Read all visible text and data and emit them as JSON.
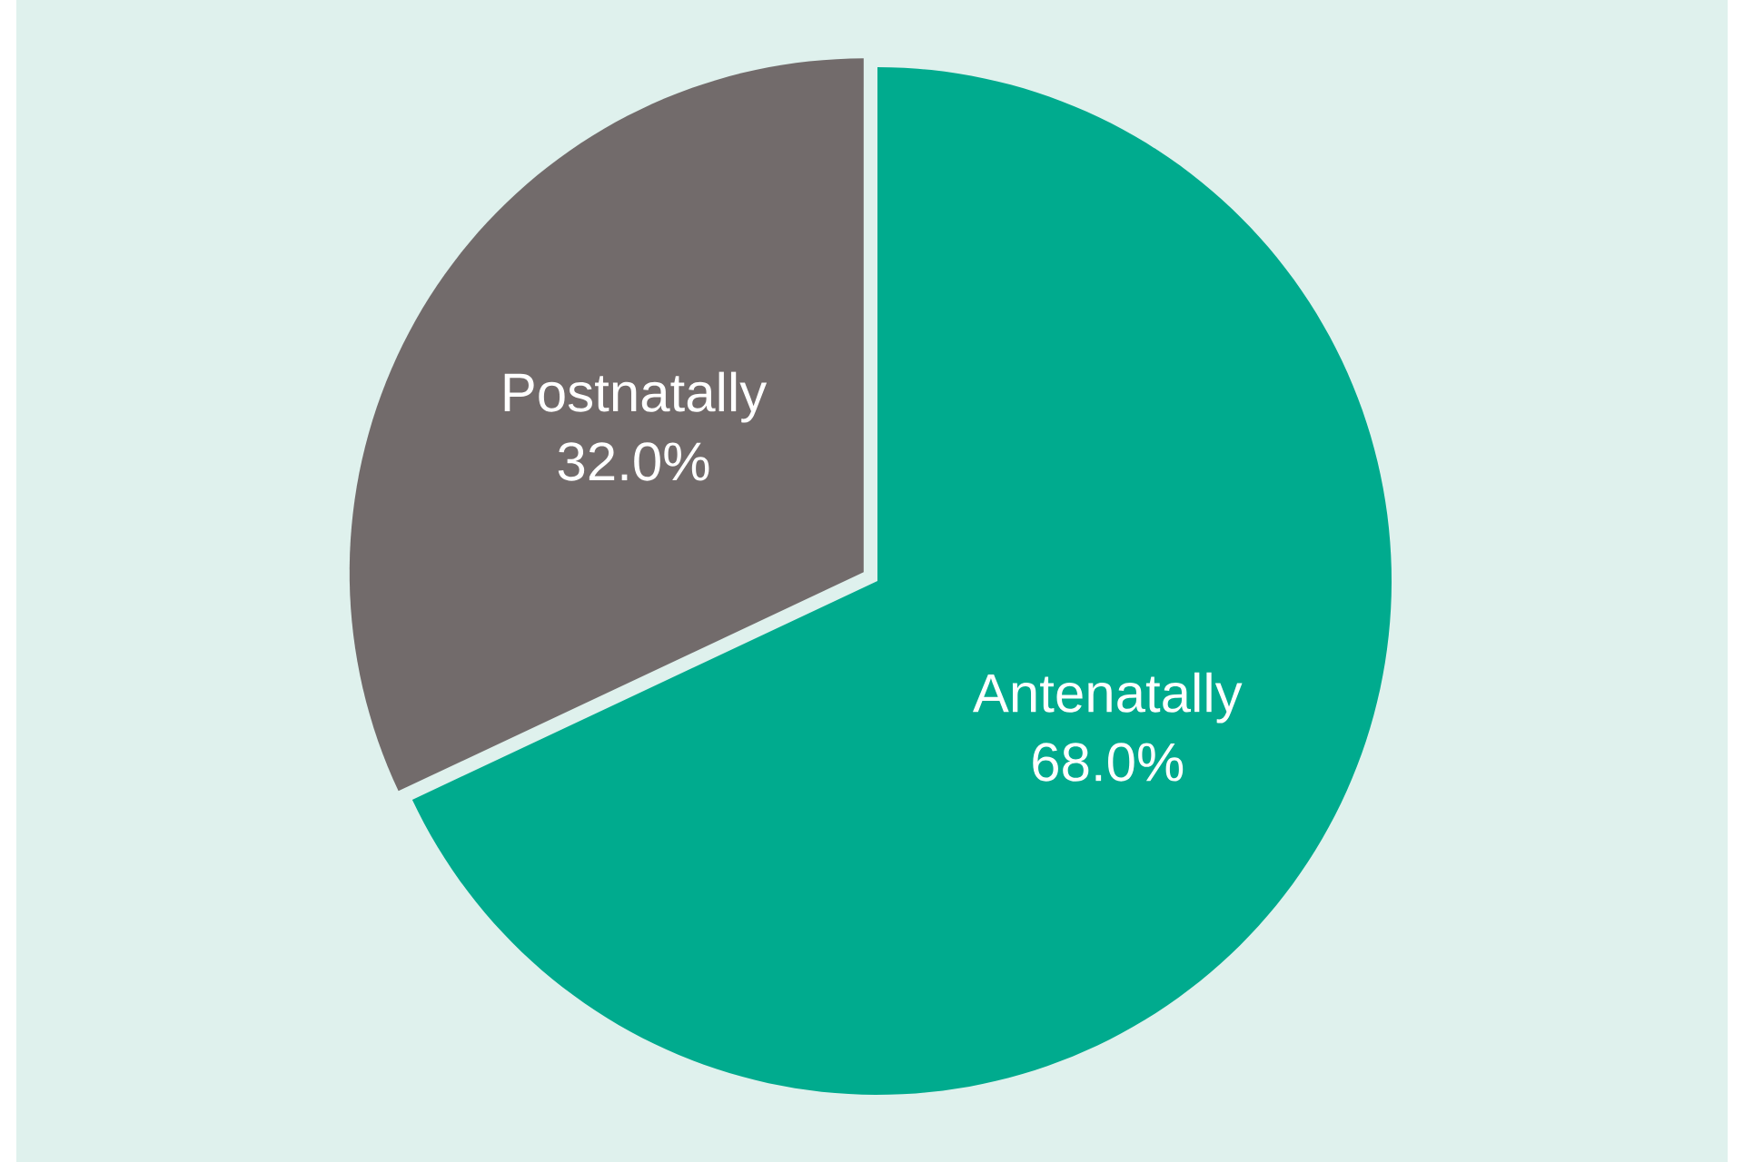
{
  "chart_data": {
    "type": "pie",
    "categories": [
      "Antenatally",
      "Postnatally"
    ],
    "values": [
      68.0,
      32.0
    ],
    "value_labels": [
      "68.0%",
      "32.0%"
    ],
    "colors": [
      "#00ab8e",
      "#726b6b"
    ]
  }
}
